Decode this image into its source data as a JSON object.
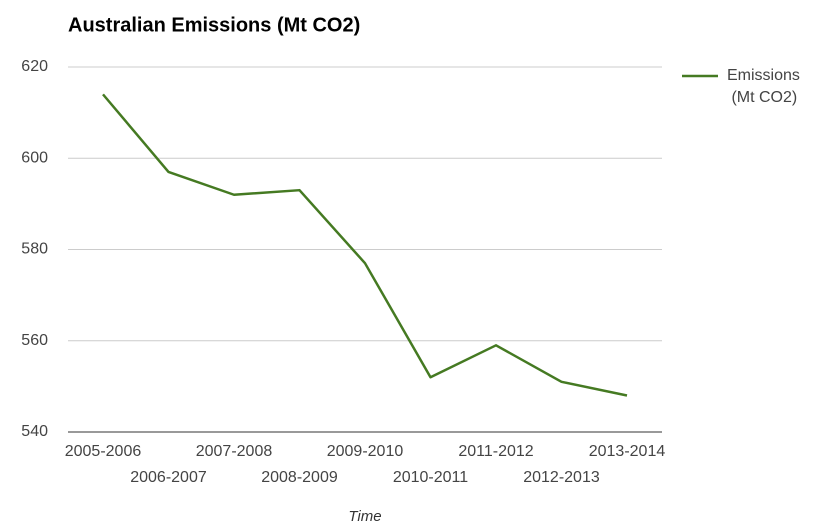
{
  "chart_data": {
    "type": "line",
    "title": "Australian Emissions (Mt CO2)",
    "x_label": "Time",
    "categories": [
      "2005-2006",
      "2006-2007",
      "2007-2008",
      "2008-2009",
      "2009-2010",
      "2010-2011",
      "2011-2012",
      "2012-2013",
      "2013-2014"
    ],
    "series": [
      {
        "name": "Emissions (Mt CO2)",
        "color": "#457a22",
        "values": [
          614,
          597,
          592,
          593,
          577,
          552,
          559,
          551,
          548
        ]
      }
    ],
    "ylim": [
      540,
      620
    ],
    "yticks": [
      540,
      560,
      580,
      600,
      620
    ],
    "grid": true,
    "legend": "right"
  }
}
